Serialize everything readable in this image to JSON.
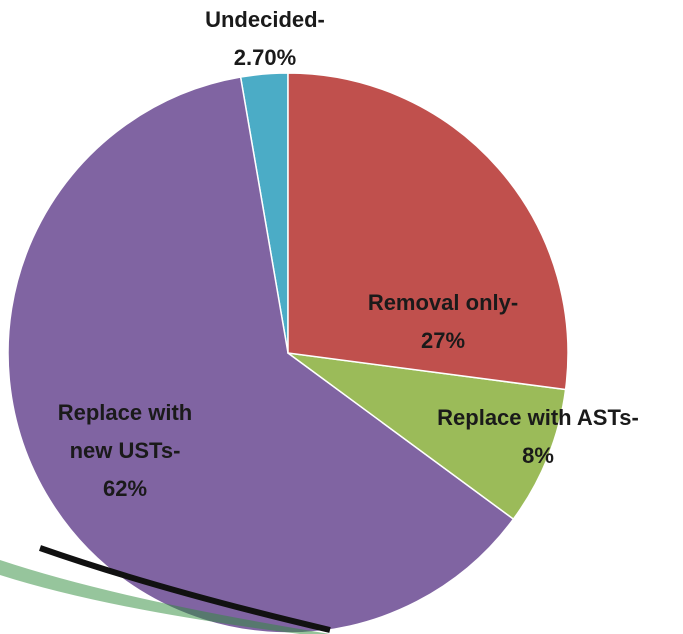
{
  "chart_data": {
    "type": "pie",
    "categories": [
      "Removal only-",
      "Replace with ASTs-",
      "Replace with new USTs-",
      "Undecided-"
    ],
    "values": [
      27,
      8,
      62,
      2.7
    ],
    "value_labels": [
      "27%",
      "8%",
      "62%",
      "2.70%"
    ],
    "colors": [
      "#c0504d",
      "#9bbb59",
      "#8064a2",
      "#4bacc6"
    ]
  }
}
